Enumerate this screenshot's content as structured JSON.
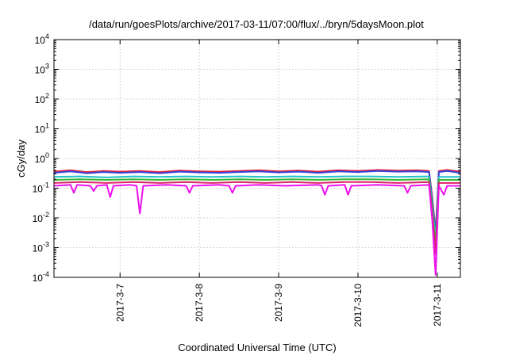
{
  "chart_data": {
    "type": "line",
    "title": "/data/run/goesPlots/archive/2017-03-11/07:00/flux/../bryn/5daysMoon.plot",
    "xlabel": "Coordinated Universal Time (UTC)",
    "ylabel": "cGy/day",
    "yscale": "log",
    "ylim": [
      0.0001,
      10000
    ],
    "yticks": [
      {
        "value": 0.0001,
        "base": "10",
        "exp": "-4"
      },
      {
        "value": 0.001,
        "base": "10",
        "exp": "-3"
      },
      {
        "value": 0.01,
        "base": "10",
        "exp": "-2"
      },
      {
        "value": 0.1,
        "base": "10",
        "exp": "-1"
      },
      {
        "value": 1,
        "base": "10",
        "exp": "0"
      },
      {
        "value": 10,
        "base": "10",
        "exp": "1"
      },
      {
        "value": 100,
        "base": "10",
        "exp": "2"
      },
      {
        "value": 1000,
        "base": "10",
        "exp": "3"
      },
      {
        "value": 10000,
        "base": "10",
        "exp": "4"
      }
    ],
    "xlim": [
      "2017-03-06T04:00",
      "2017-03-11T07:00"
    ],
    "xticks": [
      {
        "value": "2017-03-07T00:00",
        "label": "2017-3-7"
      },
      {
        "value": "2017-03-08T00:00",
        "label": "2017-3-8"
      },
      {
        "value": "2017-03-09T00:00",
        "label": "2017-3-9"
      },
      {
        "value": "2017-03-10T00:00",
        "label": "2017-3-10"
      },
      {
        "value": "2017-03-11T00:00",
        "label": "2017-3-11"
      }
    ],
    "grid": true,
    "series": [
      {
        "color": "#e8203a",
        "points": [
          [
            "2017-03-06T04:00",
            0.36
          ],
          [
            "2017-03-06T09:00",
            0.4
          ],
          [
            "2017-03-06T14:00",
            0.35
          ],
          [
            "2017-03-06T19:00",
            0.38
          ],
          [
            "2017-03-07T00:00",
            0.36
          ],
          [
            "2017-03-07T06:00",
            0.38
          ],
          [
            "2017-03-07T12:00",
            0.35
          ],
          [
            "2017-03-07T18:00",
            0.39
          ],
          [
            "2017-03-08T00:00",
            0.37
          ],
          [
            "2017-03-08T06:00",
            0.36
          ],
          [
            "2017-03-08T12:00",
            0.38
          ],
          [
            "2017-03-08T18:00",
            0.4
          ],
          [
            "2017-03-09T00:00",
            0.37
          ],
          [
            "2017-03-09T06:00",
            0.39
          ],
          [
            "2017-03-09T12:00",
            0.36
          ],
          [
            "2017-03-09T18:00",
            0.4
          ],
          [
            "2017-03-10T00:00",
            0.38
          ],
          [
            "2017-03-10T06:00",
            0.41
          ],
          [
            "2017-03-10T12:00",
            0.39
          ],
          [
            "2017-03-10T18:00",
            0.4
          ],
          [
            "2017-03-10T21:30",
            0.38
          ],
          [
            "2017-03-10T22:30",
            0.05
          ],
          [
            "2017-03-10T23:30",
            0.0035
          ],
          [
            "2017-03-11T00:30",
            0.38
          ],
          [
            "2017-03-11T03:00",
            0.41
          ],
          [
            "2017-03-11T07:00",
            0.36
          ]
        ]
      },
      {
        "color": "#3344dd",
        "points": [
          [
            "2017-03-06T04:00",
            0.33
          ],
          [
            "2017-03-06T09:00",
            0.37
          ],
          [
            "2017-03-06T14:00",
            0.32
          ],
          [
            "2017-03-06T19:00",
            0.35
          ],
          [
            "2017-03-07T00:00",
            0.33
          ],
          [
            "2017-03-07T06:00",
            0.35
          ],
          [
            "2017-03-07T12:00",
            0.32
          ],
          [
            "2017-03-07T18:00",
            0.36
          ],
          [
            "2017-03-08T00:00",
            0.34
          ],
          [
            "2017-03-08T06:00",
            0.33
          ],
          [
            "2017-03-08T12:00",
            0.35
          ],
          [
            "2017-03-08T18:00",
            0.37
          ],
          [
            "2017-03-09T00:00",
            0.34
          ],
          [
            "2017-03-09T06:00",
            0.36
          ],
          [
            "2017-03-09T12:00",
            0.33
          ],
          [
            "2017-03-09T18:00",
            0.37
          ],
          [
            "2017-03-10T00:00",
            0.35
          ],
          [
            "2017-03-10T06:00",
            0.38
          ],
          [
            "2017-03-10T12:00",
            0.36
          ],
          [
            "2017-03-10T18:00",
            0.37
          ],
          [
            "2017-03-10T21:30",
            0.35
          ],
          [
            "2017-03-10T22:30",
            0.04
          ],
          [
            "2017-03-10T23:30",
            0.003
          ],
          [
            "2017-03-11T00:30",
            0.35
          ],
          [
            "2017-03-11T03:00",
            0.38
          ],
          [
            "2017-03-11T07:00",
            0.33
          ]
        ]
      },
      {
        "color": "#22c0c8",
        "points": [
          [
            "2017-03-06T04:00",
            0.24
          ],
          [
            "2017-03-06T12:00",
            0.25
          ],
          [
            "2017-03-06T20:00",
            0.23
          ],
          [
            "2017-03-07T04:00",
            0.25
          ],
          [
            "2017-03-07T12:00",
            0.24
          ],
          [
            "2017-03-07T20:00",
            0.25
          ],
          [
            "2017-03-08T04:00",
            0.24
          ],
          [
            "2017-03-08T12:00",
            0.25
          ],
          [
            "2017-03-08T20:00",
            0.24
          ],
          [
            "2017-03-09T04:00",
            0.25
          ],
          [
            "2017-03-09T12:00",
            0.24
          ],
          [
            "2017-03-09T20:00",
            0.25
          ],
          [
            "2017-03-10T04:00",
            0.25
          ],
          [
            "2017-03-10T12:00",
            0.24
          ],
          [
            "2017-03-10T21:30",
            0.25
          ],
          [
            "2017-03-10T22:30",
            0.03
          ],
          [
            "2017-03-10T23:30",
            0.002
          ],
          [
            "2017-03-11T00:30",
            0.24
          ],
          [
            "2017-03-11T07:00",
            0.24
          ]
        ]
      },
      {
        "color": "#33b833",
        "points": [
          [
            "2017-03-06T04:00",
            0.19
          ],
          [
            "2017-03-06T12:00",
            0.2
          ],
          [
            "2017-03-06T20:00",
            0.19
          ],
          [
            "2017-03-07T04:00",
            0.2
          ],
          [
            "2017-03-07T12:00",
            0.19
          ],
          [
            "2017-03-07T20:00",
            0.2
          ],
          [
            "2017-03-08T04:00",
            0.19
          ],
          [
            "2017-03-08T12:00",
            0.2
          ],
          [
            "2017-03-08T20:00",
            0.19
          ],
          [
            "2017-03-09T04:00",
            0.2
          ],
          [
            "2017-03-09T12:00",
            0.19
          ],
          [
            "2017-03-09T20:00",
            0.2
          ],
          [
            "2017-03-10T04:00",
            0.2
          ],
          [
            "2017-03-10T12:00",
            0.19
          ],
          [
            "2017-03-10T21:30",
            0.2
          ],
          [
            "2017-03-10T22:30",
            0.02
          ],
          [
            "2017-03-10T23:30",
            0.0012
          ],
          [
            "2017-03-11T00:30",
            0.19
          ],
          [
            "2017-03-11T07:00",
            0.19
          ]
        ]
      },
      {
        "color": "#dd2266",
        "points": [
          [
            "2017-03-06T04:00",
            0.15
          ],
          [
            "2017-03-06T12:00",
            0.16
          ],
          [
            "2017-03-06T20:00",
            0.15
          ],
          [
            "2017-03-07T04:00",
            0.16
          ],
          [
            "2017-03-07T12:00",
            0.15
          ],
          [
            "2017-03-07T20:00",
            0.16
          ],
          [
            "2017-03-08T04:00",
            0.15
          ],
          [
            "2017-03-08T12:00",
            0.16
          ],
          [
            "2017-03-08T20:00",
            0.15
          ],
          [
            "2017-03-09T04:00",
            0.16
          ],
          [
            "2017-03-09T12:00",
            0.15
          ],
          [
            "2017-03-09T20:00",
            0.16
          ],
          [
            "2017-03-10T04:00",
            0.16
          ],
          [
            "2017-03-10T12:00",
            0.15
          ],
          [
            "2017-03-10T21:30",
            0.16
          ],
          [
            "2017-03-10T22:30",
            0.015
          ],
          [
            "2017-03-10T23:30",
            0.0006
          ],
          [
            "2017-03-11T00:30",
            0.15
          ],
          [
            "2017-03-11T07:00",
            0.15
          ]
        ]
      },
      {
        "color": "#ee11ee",
        "points": [
          [
            "2017-03-06T04:00",
            0.12
          ],
          [
            "2017-03-06T09:00",
            0.13
          ],
          [
            "2017-03-06T10:00",
            0.07
          ],
          [
            "2017-03-06T11:00",
            0.13
          ],
          [
            "2017-03-06T15:00",
            0.12
          ],
          [
            "2017-03-06T16:00",
            0.08
          ],
          [
            "2017-03-06T17:00",
            0.12
          ],
          [
            "2017-03-06T20:00",
            0.13
          ],
          [
            "2017-03-06T21:00",
            0.05
          ],
          [
            "2017-03-06T22:00",
            0.12
          ],
          [
            "2017-03-07T03:00",
            0.13
          ],
          [
            "2017-03-07T05:00",
            0.12
          ],
          [
            "2017-03-07T06:00",
            0.014
          ],
          [
            "2017-03-07T07:00",
            0.12
          ],
          [
            "2017-03-07T14:00",
            0.13
          ],
          [
            "2017-03-07T20:00",
            0.12
          ],
          [
            "2017-03-07T21:00",
            0.07
          ],
          [
            "2017-03-07T22:00",
            0.12
          ],
          [
            "2017-03-08T06:00",
            0.13
          ],
          [
            "2017-03-08T09:00",
            0.12
          ],
          [
            "2017-03-08T10:00",
            0.07
          ],
          [
            "2017-03-08T11:00",
            0.12
          ],
          [
            "2017-03-08T18:00",
            0.13
          ],
          [
            "2017-03-09T02:00",
            0.12
          ],
          [
            "2017-03-09T12:00",
            0.13
          ],
          [
            "2017-03-09T13:00",
            0.12
          ],
          [
            "2017-03-09T14:00",
            0.06
          ],
          [
            "2017-03-09T15:00",
            0.12
          ],
          [
            "2017-03-09T20:00",
            0.13
          ],
          [
            "2017-03-09T21:00",
            0.06
          ],
          [
            "2017-03-09T22:00",
            0.12
          ],
          [
            "2017-03-10T06:00",
            0.13
          ],
          [
            "2017-03-10T14:00",
            0.12
          ],
          [
            "2017-03-10T15:00",
            0.07
          ],
          [
            "2017-03-10T16:00",
            0.12
          ],
          [
            "2017-03-10T21:30",
            0.13
          ],
          [
            "2017-03-10T22:30",
            0.008
          ],
          [
            "2017-03-10T23:30",
            0.00012
          ],
          [
            "2017-03-11T00:30",
            0.12
          ],
          [
            "2017-03-11T02:00",
            0.06
          ],
          [
            "2017-03-11T03:00",
            0.12
          ],
          [
            "2017-03-11T07:00",
            0.12
          ]
        ]
      }
    ]
  }
}
